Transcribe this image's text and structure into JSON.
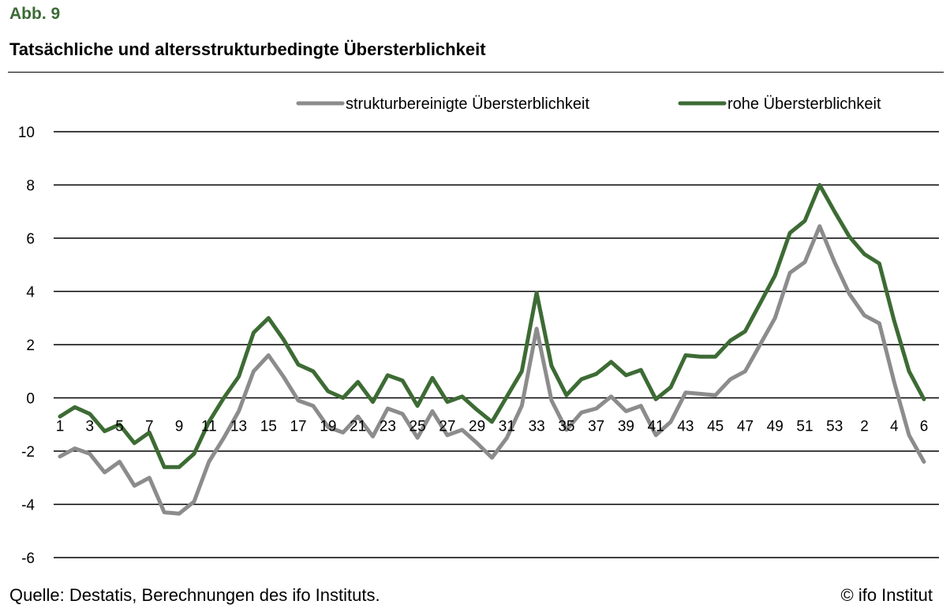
{
  "figure": {
    "label": "Abb. 9",
    "title": "Tatsächliche und altersstrukturbedingte Übersterblichkeit",
    "source": "Quelle: Destatis, Berechnungen des ifo Instituts.",
    "copyright": "© ifo Institut"
  },
  "chart_data": {
    "type": "line",
    "title": "Tatsächliche und altersstrukturbedingte Übersterblichkeit",
    "xlabel": "",
    "ylabel": "",
    "ylim": [
      -6,
      10
    ],
    "yticks": [
      -6,
      -4,
      -2,
      0,
      2,
      4,
      6,
      8,
      10
    ],
    "grid": "horizontal",
    "legend_position": "top-right",
    "x": [
      "1",
      "2",
      "3",
      "4",
      "5",
      "6",
      "7",
      "8",
      "9",
      "10",
      "11",
      "12",
      "13",
      "14",
      "15",
      "16",
      "17",
      "18",
      "19",
      "20",
      "21",
      "22",
      "23",
      "24",
      "25",
      "26",
      "27",
      "28",
      "29",
      "30",
      "31",
      "32",
      "33",
      "34",
      "35",
      "36",
      "37",
      "38",
      "39",
      "40",
      "41",
      "42",
      "43",
      "44",
      "45",
      "46",
      "47",
      "48",
      "49",
      "50",
      "51",
      "52",
      "53",
      "1",
      "2",
      "3",
      "4",
      "5",
      "6"
    ],
    "xtick_labels_shown": [
      "1",
      "3",
      "5",
      "7",
      "9",
      "11",
      "13",
      "15",
      "17",
      "19",
      "21",
      "23",
      "25",
      "27",
      "29",
      "31",
      "33",
      "35",
      "37",
      "39",
      "41",
      "43",
      "45",
      "47",
      "49",
      "51",
      "53",
      "2",
      "4",
      "6"
    ],
    "series": [
      {
        "name": "strukturbereinigte Übersterblichkeit",
        "color": "#8c8c8c",
        "values": [
          -2.2,
          -1.9,
          -2.1,
          -2.8,
          -2.4,
          -3.3,
          -3.0,
          -4.3,
          -4.35,
          -3.9,
          -2.4,
          -1.5,
          -0.5,
          1.0,
          1.6,
          0.8,
          -0.1,
          -0.3,
          -1.1,
          -1.3,
          -0.7,
          -1.45,
          -0.4,
          -0.6,
          -1.5,
          -0.5,
          -1.4,
          -1.2,
          -1.7,
          -2.25,
          -1.5,
          -0.3,
          2.6,
          -0.1,
          -1.2,
          -0.55,
          -0.4,
          0.05,
          -0.5,
          -0.3,
          -1.4,
          -0.9,
          0.2,
          0.15,
          0.1,
          0.7,
          1.0,
          2.0,
          3.0,
          4.7,
          5.1,
          6.45,
          5.1,
          3.9,
          3.1,
          2.8,
          0.6,
          -1.4,
          -2.4
        ]
      },
      {
        "name": "rohe Übersterblichkeit",
        "color": "#3d6b34",
        "values": [
          -0.7,
          -0.35,
          -0.6,
          -1.25,
          -1.0,
          -1.7,
          -1.3,
          -2.6,
          -2.6,
          -2.1,
          -0.9,
          0.0,
          0.8,
          2.45,
          3.0,
          2.2,
          1.25,
          1.0,
          0.25,
          0.0,
          0.6,
          -0.15,
          0.85,
          0.65,
          -0.3,
          0.75,
          -0.15,
          0.05,
          -0.45,
          -0.9,
          0.05,
          1.0,
          3.95,
          1.2,
          0.1,
          0.7,
          0.9,
          1.35,
          0.85,
          1.05,
          -0.05,
          0.4,
          1.6,
          1.55,
          1.55,
          2.15,
          2.5,
          3.55,
          4.6,
          6.2,
          6.65,
          8.0,
          7.0,
          6.05,
          5.4,
          5.05,
          2.9,
          1.0,
          -0.05
        ]
      }
    ]
  }
}
